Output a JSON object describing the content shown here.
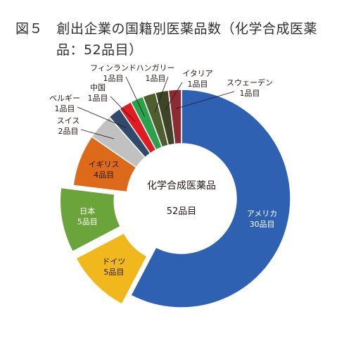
{
  "title_line1": "図５　創出企業の国籍別医薬品数（化学合成医薬",
  "title_line2": "品：52品目）",
  "center": {
    "label": "化学合成医薬品",
    "total": "52品目"
  },
  "chart_data": {
    "type": "pie",
    "title": "図５　創出企業の国籍別医薬品数（化学合成医薬品：52品目）",
    "total": 52,
    "unit": "品目",
    "slices": [
      {
        "country": "アメリカ",
        "value": 30,
        "value_label": "30品目",
        "color": "#2f61b3",
        "exploded": false
      },
      {
        "country": "ドイツ",
        "value": 5,
        "value_label": "5品目",
        "color": "#f0b81c",
        "exploded": true
      },
      {
        "country": "日本",
        "value": 5,
        "value_label": "5品目",
        "color": "#6ba43a",
        "exploded": true
      },
      {
        "country": "イギリス",
        "value": 4,
        "value_label": "4品目",
        "color": "#dc6a1a",
        "exploded": false
      },
      {
        "country": "スイス",
        "value": 2,
        "value_label": "2品目",
        "color": "#c1c1c1",
        "exploded": false
      },
      {
        "country": "ベルギー",
        "value": 1,
        "value_label": "1品目",
        "color": "#2f4a6b",
        "exploded": false
      },
      {
        "country": "中国",
        "value": 1,
        "value_label": "1品目",
        "color": "#e21a22",
        "exploded": false
      },
      {
        "country": "フィンランド",
        "value": 1,
        "value_label": "1品目",
        "color": "#2aa14b",
        "exploded": false
      },
      {
        "country": "ハンガリー",
        "value": 1,
        "value_label": "1品目",
        "color": "#4f5e2e",
        "exploded": false
      },
      {
        "country": "イタリア",
        "value": 1,
        "value_label": "1品目",
        "color": "#3f4426",
        "exploded": false
      },
      {
        "country": "スウェーデン",
        "value": 1,
        "value_label": "1品目",
        "color": "#8c2b34",
        "exploded": false
      }
    ]
  }
}
